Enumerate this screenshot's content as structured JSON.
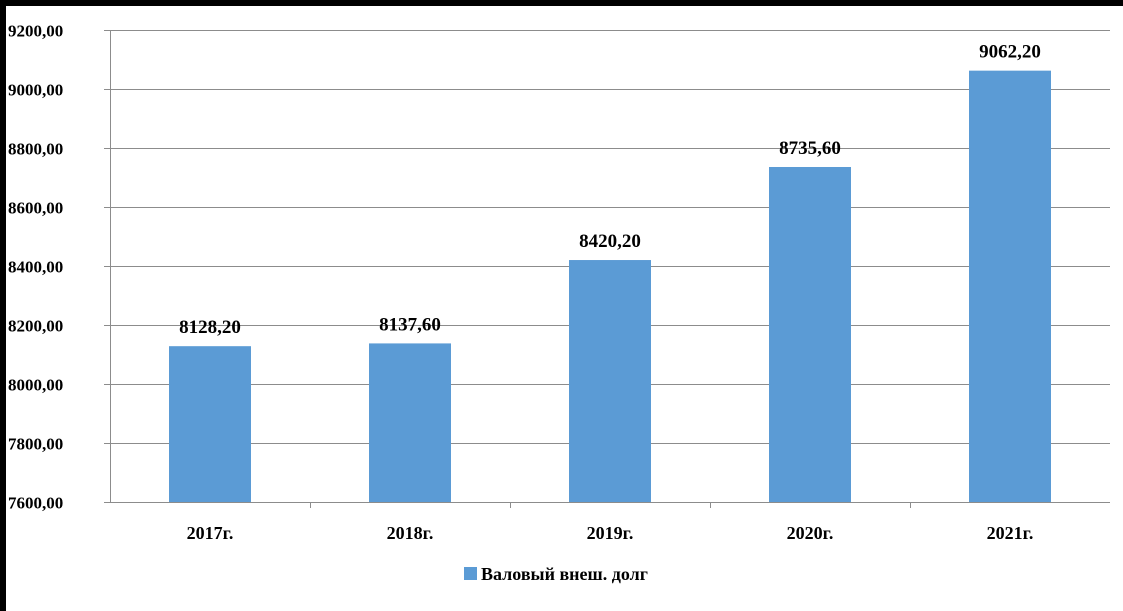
{
  "chart_data": {
    "type": "bar",
    "categories": [
      "2017г.",
      "2018г.",
      "2019г.",
      "2020г.",
      "2021г."
    ],
    "series": [
      {
        "name": "Валовый внеш. долг",
        "values": [
          8128.2,
          8137.6,
          8420.2,
          8735.6,
          9062.2
        ],
        "value_labels": [
          "8128,20",
          "8137,60",
          "8420,20",
          "8735,60",
          "9062,20"
        ],
        "color": "#5b9bd5"
      }
    ],
    "ylim": [
      7600,
      9200
    ],
    "yticks": [
      7600,
      7800,
      8000,
      8200,
      8400,
      8600,
      8800,
      9000,
      9200
    ],
    "ytick_labels": [
      "7600,00",
      "7800,00",
      "8000,00",
      "8200,00",
      "8400,00",
      "8600,00",
      "8800,00",
      "9000,00",
      "9200,00"
    ],
    "grid": true,
    "legend_position": "bottom",
    "title": "",
    "xlabel": "",
    "ylabel": ""
  }
}
